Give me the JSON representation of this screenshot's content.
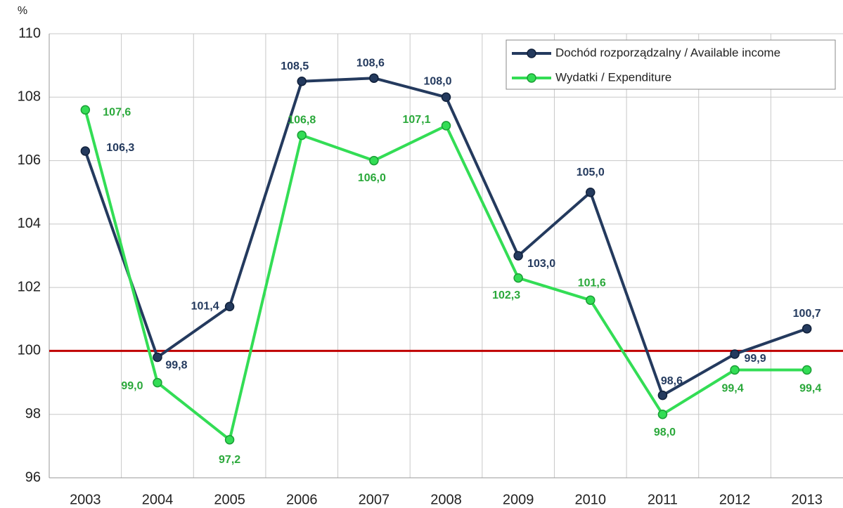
{
  "chart_data": {
    "type": "line",
    "y_axis_label": "%",
    "categories": [
      "2003",
      "2004",
      "2005",
      "2006",
      "2007",
      "2008",
      "2009",
      "2010",
      "2011",
      "2012",
      "2013"
    ],
    "series": [
      {
        "name": "Dochód rozporządzalny / Available income",
        "color": "#243a5e",
        "values": [
          106.3,
          99.8,
          101.4,
          108.5,
          108.6,
          108.0,
          103.0,
          105.0,
          98.6,
          99.9,
          100.7
        ],
        "value_labels": [
          "106,3",
          "99,8",
          "101,4",
          "108,5",
          "108,6",
          "108,0",
          "103,0",
          "105,0",
          "98,6",
          "99,9",
          "100,7"
        ]
      },
      {
        "name": "Wydatki / Expenditure",
        "color": "#33dd55",
        "values": [
          107.6,
          99.0,
          97.2,
          106.8,
          106.0,
          107.1,
          102.3,
          101.6,
          98.0,
          99.4,
          99.4
        ],
        "value_labels": [
          "107,6",
          "99,0",
          "97,2",
          "106,8",
          "106,0",
          "107,1",
          "102,3",
          "101,6",
          "98,0",
          "99,4",
          "99,4"
        ]
      }
    ],
    "ylim": [
      96,
      110
    ],
    "yticks": [
      96,
      98,
      100,
      102,
      104,
      106,
      108,
      110
    ],
    "grid": true,
    "legend": "top-right",
    "reference_line": {
      "value": 100,
      "color": "#c00000"
    }
  }
}
